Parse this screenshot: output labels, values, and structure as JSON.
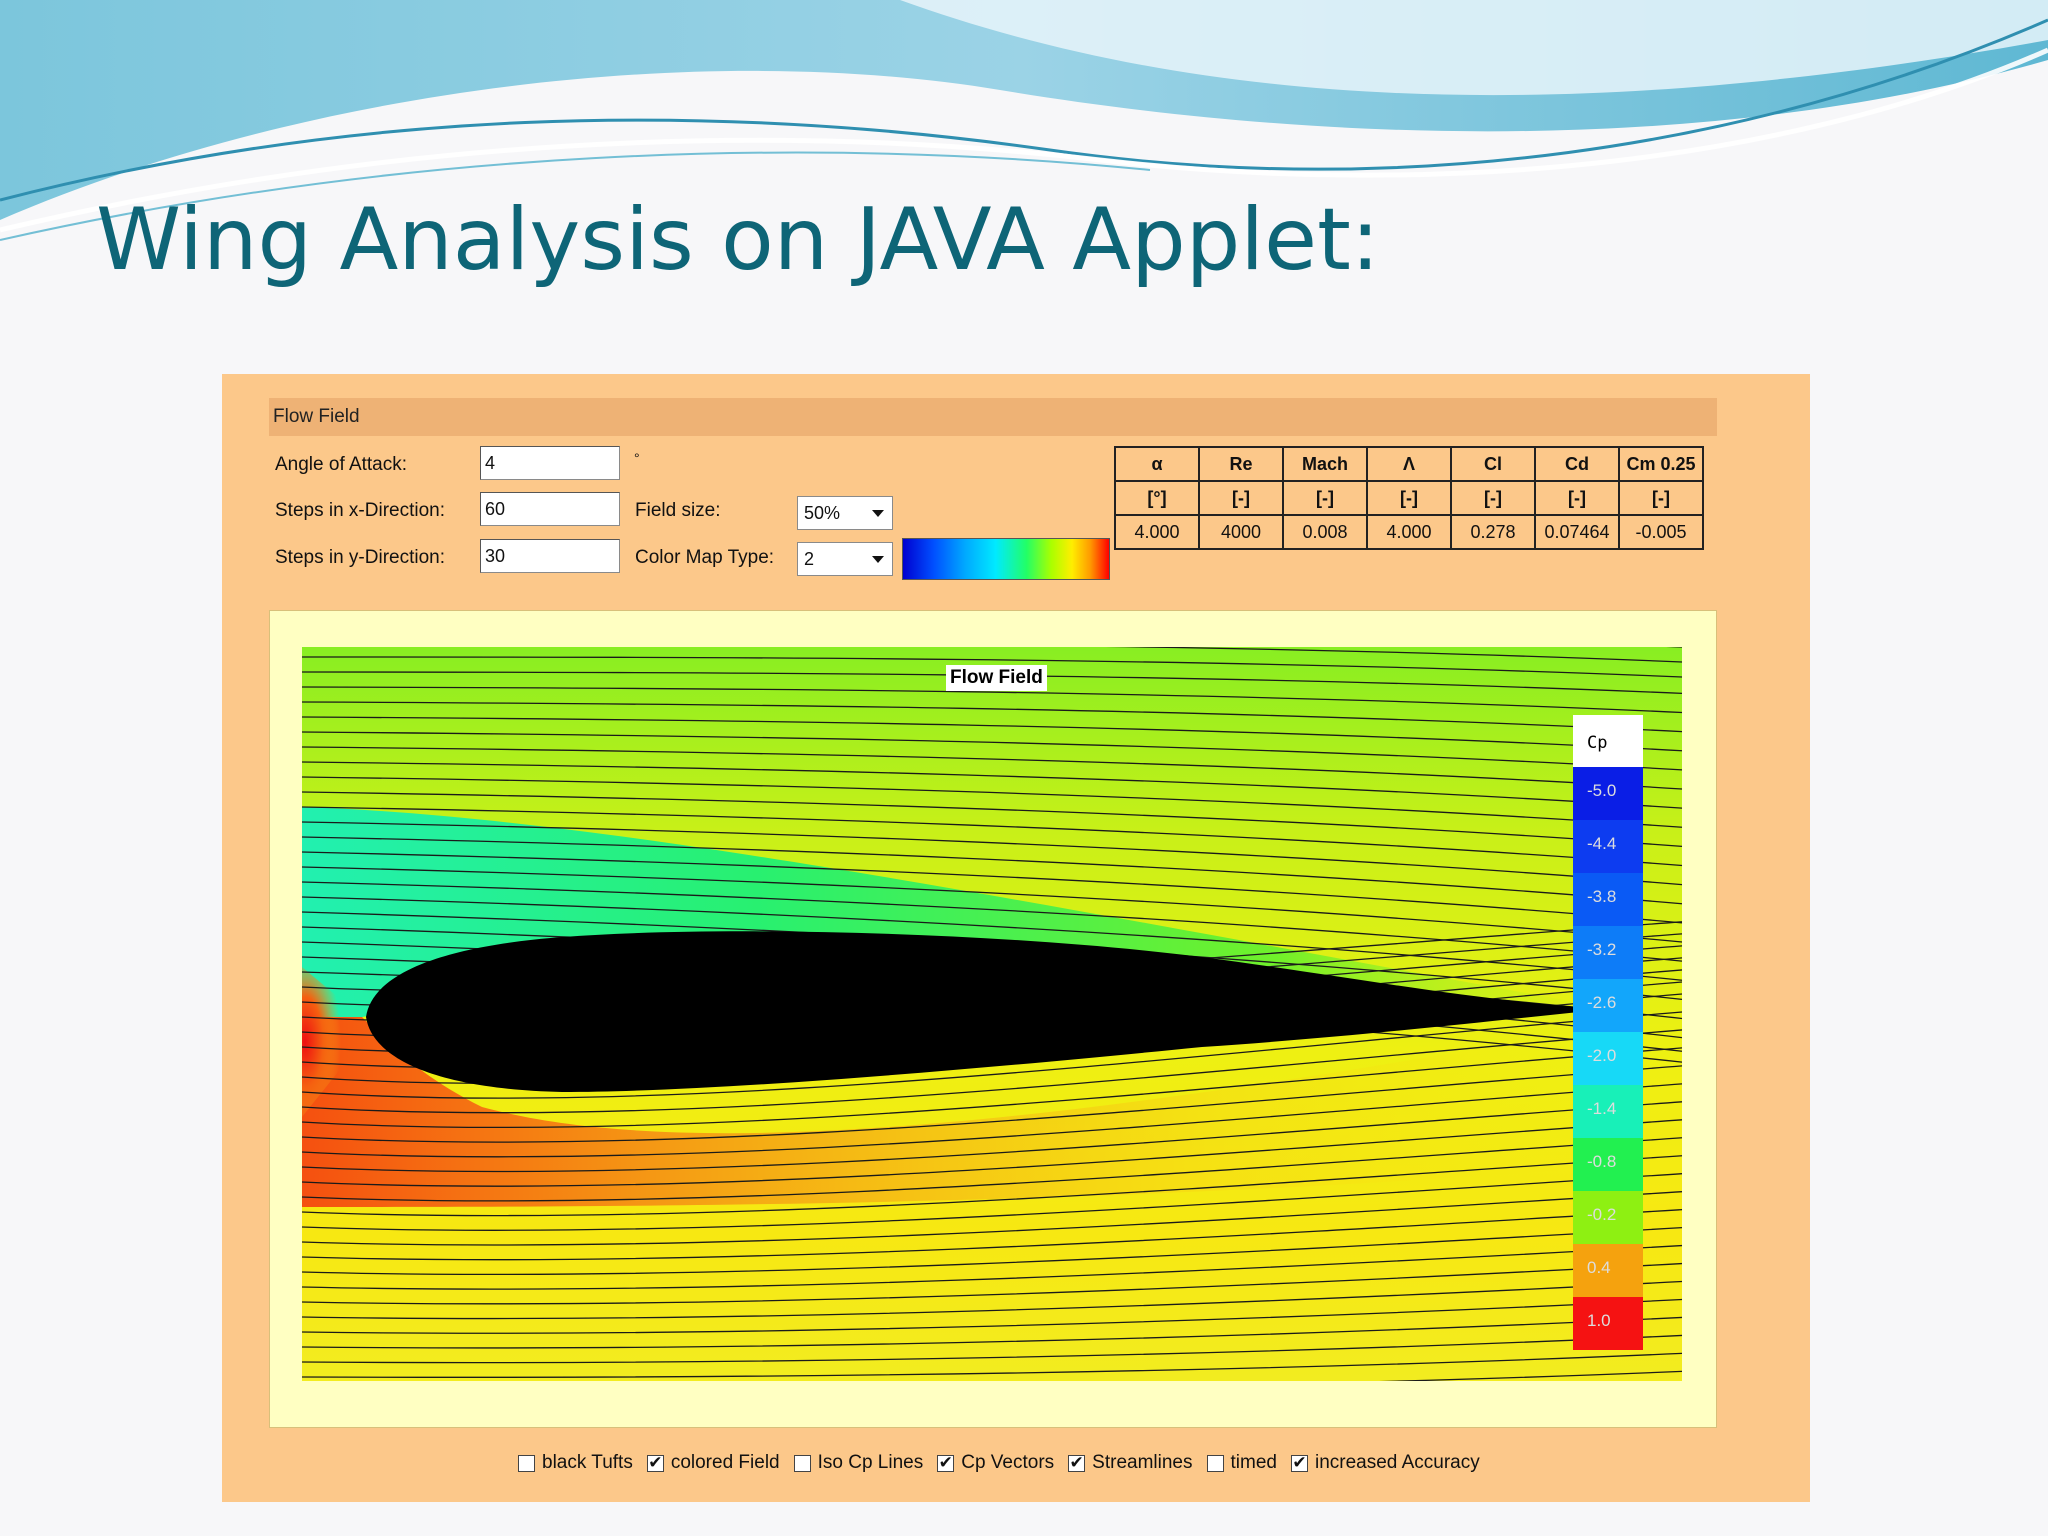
{
  "slide": {
    "title": "Wing Analysis on JAVA Applet:"
  },
  "applet": {
    "panel_title": "Flow Field",
    "inputs": {
      "angle_of_attack": {
        "label": "Angle of Attack:",
        "value": "4",
        "unit": "°"
      },
      "steps_x": {
        "label": "Steps in x-Direction:",
        "value": "60"
      },
      "steps_y": {
        "label": "Steps in y-Direction:",
        "value": "30"
      }
    },
    "field_size": {
      "label": "Field size:",
      "value": "50%"
    },
    "color_map": {
      "label": "Color Map Type:",
      "value": "2"
    },
    "results": {
      "headers": [
        "α",
        "Re",
        "Mach",
        "Λ",
        "Cl",
        "Cd",
        "Cm 0.25"
      ],
      "units": [
        "[°]",
        "[-]",
        "[-]",
        "[-]",
        "[-]",
        "[-]",
        "[-]"
      ],
      "values": [
        "4.000",
        "4000",
        "0.008",
        "4.000",
        "0.278",
        "0.07464",
        "-0.005"
      ]
    },
    "plot": {
      "title": "Flow Field",
      "legend_title": "Cp",
      "legend": [
        {
          "label": "-5.0",
          "color": "#0a1ee6"
        },
        {
          "label": "-4.4",
          "color": "#0d3cf0"
        },
        {
          "label": "-3.8",
          "color": "#0a5af5"
        },
        {
          "label": "-3.2",
          "color": "#0d7cf8"
        },
        {
          "label": "-2.6",
          "color": "#12a6fb"
        },
        {
          "label": "-2.0",
          "color": "#17d9f7"
        },
        {
          "label": "-1.4",
          "color": "#18f0b8"
        },
        {
          "label": "-0.8",
          "color": "#22f050"
        },
        {
          "label": "-0.2",
          "color": "#8ef012"
        },
        {
          "label": "0.4",
          "color": "#f5a20e"
        },
        {
          "label": "1.0",
          "color": "#f51212"
        }
      ]
    },
    "options": [
      {
        "label": "black Tufts",
        "checked": false
      },
      {
        "label": "colored Field",
        "checked": true
      },
      {
        "label": "Iso Cp Lines",
        "checked": false
      },
      {
        "label": "Cp Vectors",
        "checked": true
      },
      {
        "label": "Streamlines",
        "checked": true
      },
      {
        "label": "timed",
        "checked": false
      },
      {
        "label": "increased Accuracy",
        "checked": true
      }
    ],
    "colors": {
      "applet_bg": "#fcc88a",
      "title": "#0e6577",
      "airfoil": "#000000"
    }
  }
}
